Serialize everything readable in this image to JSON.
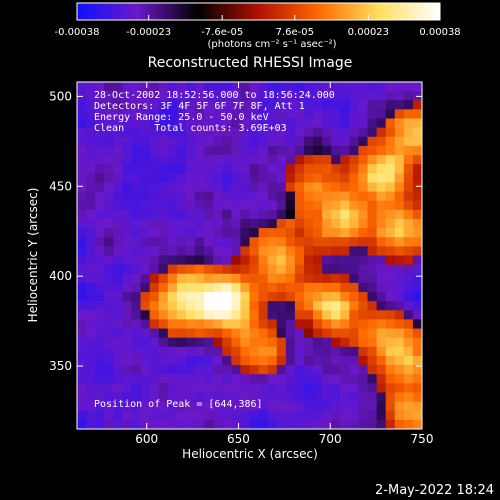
{
  "chart_data": {
    "type": "heatmap",
    "title": "Reconstructed RHESSI Image",
    "xlabel": "Heliocentric X (arcsec)",
    "ylabel": "Heliocentric Y (arcsec)",
    "xlim": [
      562,
      750
    ],
    "ylim": [
      315,
      508
    ],
    "x_ticks": [
      600,
      650,
      700,
      750
    ],
    "y_ticks": [
      350,
      400,
      450,
      500
    ],
    "x_tick_labels": [
      "600",
      "650",
      "700",
      "750"
    ],
    "y_tick_labels": [
      "350",
      "400",
      "450",
      "500"
    ],
    "colorbar": {
      "range": [
        -0.00038,
        0.00038
      ],
      "tick_values": [
        -0.00038,
        -0.00023,
        -7.6e-05,
        7.6e-05,
        0.00023,
        0.00038
      ],
      "tick_labels": [
        "-0.00038",
        "-0.00023",
        "-7.6e-05",
        "7.6e-05",
        "0.00023",
        "0.00038"
      ],
      "units_label": "(photons cm⁻² s⁻¹ asec⁻²)",
      "colors": [
        "#1010ff",
        "#6a18c8",
        "#000000",
        "#b01000",
        "#ff6a00",
        "#ffe060",
        "#ffffff"
      ]
    },
    "annotations": [
      "28-Oct-2002 18:52:56.000 to 18:56:24.000",
      "Detectors: 3F 4F 5F 6F 7F 8F, Att 1",
      "Energy Range: 25.0 - 50.0 keV",
      "Clean     Total counts: 3.69E+03"
    ],
    "peak_label": "Position of Peak = [644,386]",
    "peak_position": [
      644,
      386
    ],
    "emission_centers": [
      {
        "x": 644,
        "y": 386,
        "intensity": 1.0
      },
      {
        "x": 618,
        "y": 386,
        "intensity": 0.75
      },
      {
        "x": 672,
        "y": 410,
        "intensity": 0.7
      },
      {
        "x": 700,
        "y": 382,
        "intensity": 0.65
      },
      {
        "x": 704,
        "y": 432,
        "intensity": 0.65
      },
      {
        "x": 728,
        "y": 455,
        "intensity": 0.75
      },
      {
        "x": 738,
        "y": 425,
        "intensity": 0.55
      },
      {
        "x": 730,
        "y": 365,
        "intensity": 0.5
      },
      {
        "x": 745,
        "y": 350,
        "intensity": 0.45
      },
      {
        "x": 660,
        "y": 358,
        "intensity": 0.4
      },
      {
        "x": 690,
        "y": 455,
        "intensity": 0.35
      },
      {
        "x": 745,
        "y": 325,
        "intensity": 0.45
      },
      {
        "x": 748,
        "y": 478,
        "intensity": 0.6
      }
    ]
  },
  "footer": {
    "timestamp": "2-May-2022 18:24"
  }
}
